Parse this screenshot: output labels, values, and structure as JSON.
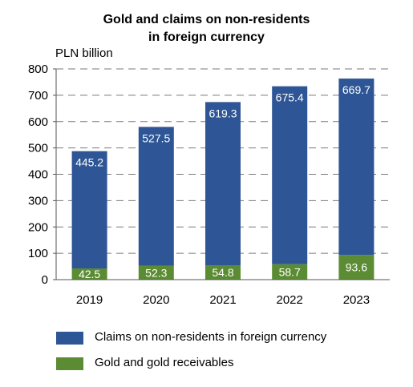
{
  "chart_data": {
    "type": "bar",
    "stacked": true,
    "title_line1": "Gold and claims on non-residents",
    "title_line2": "in foreign currency",
    "ylabel": "PLN billion",
    "xlabel": "",
    "categories": [
      "2019",
      "2020",
      "2021",
      "2022",
      "2023"
    ],
    "ylim": [
      0,
      800
    ],
    "yticks": [
      0,
      100,
      200,
      300,
      400,
      500,
      600,
      700,
      800
    ],
    "grid": true,
    "legend_position": "bottom",
    "series": [
      {
        "name": "Gold and gold receivables",
        "color": "#5b8c33",
        "values": [
          42.5,
          52.3,
          54.8,
          58.7,
          93.6
        ]
      },
      {
        "name": "Claims on non-residents in foreign currency",
        "color": "#2e5595",
        "values": [
          445.2,
          527.5,
          619.3,
          675.4,
          669.7
        ]
      }
    ]
  },
  "legend": {
    "items": [
      {
        "label": "Claims on non-residents in foreign currency",
        "color": "#2e5595"
      },
      {
        "label": "Gold and gold receivables",
        "color": "#5b8c33"
      }
    ]
  }
}
